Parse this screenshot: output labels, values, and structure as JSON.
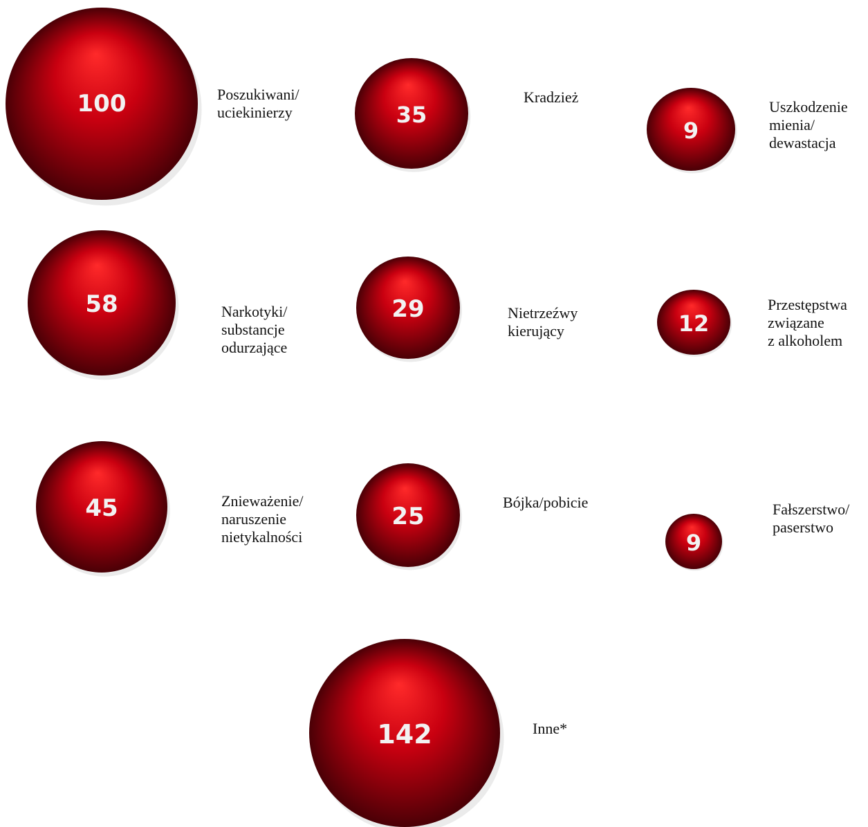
{
  "chart_data": {
    "type": "bubble",
    "colors": {
      "highlight": "#ff2a2a",
      "mid": "#c90010",
      "shadow": "#4a0006",
      "value_text": "#f2f2f2",
      "label_text": "#111111"
    },
    "series": [
      {
        "category": "Poszukiwani/\nuciekinierzy",
        "value": 100
      },
      {
        "category": "Kradzież",
        "value": 35
      },
      {
        "category": "Uszkodzenie\nmienia/\ndewastacja",
        "value": 9
      },
      {
        "category": "Narkotyki/\nsubstancje\nodurzające",
        "value": 58
      },
      {
        "category": "Nietrzeźwy\nkierujący",
        "value": 29
      },
      {
        "category": "Przestępstwa\nzwiązane\nz alkoholem",
        "value": 12
      },
      {
        "category": "Znieważenie/\nnaruszenie\nnietykalności",
        "value": 45
      },
      {
        "category": "Bójka/pobicie",
        "value": 25
      },
      {
        "category": "Fałszerstwo/\npaserstwo",
        "value": 9
      },
      {
        "category": "Inne*",
        "value": 142
      }
    ]
  }
}
